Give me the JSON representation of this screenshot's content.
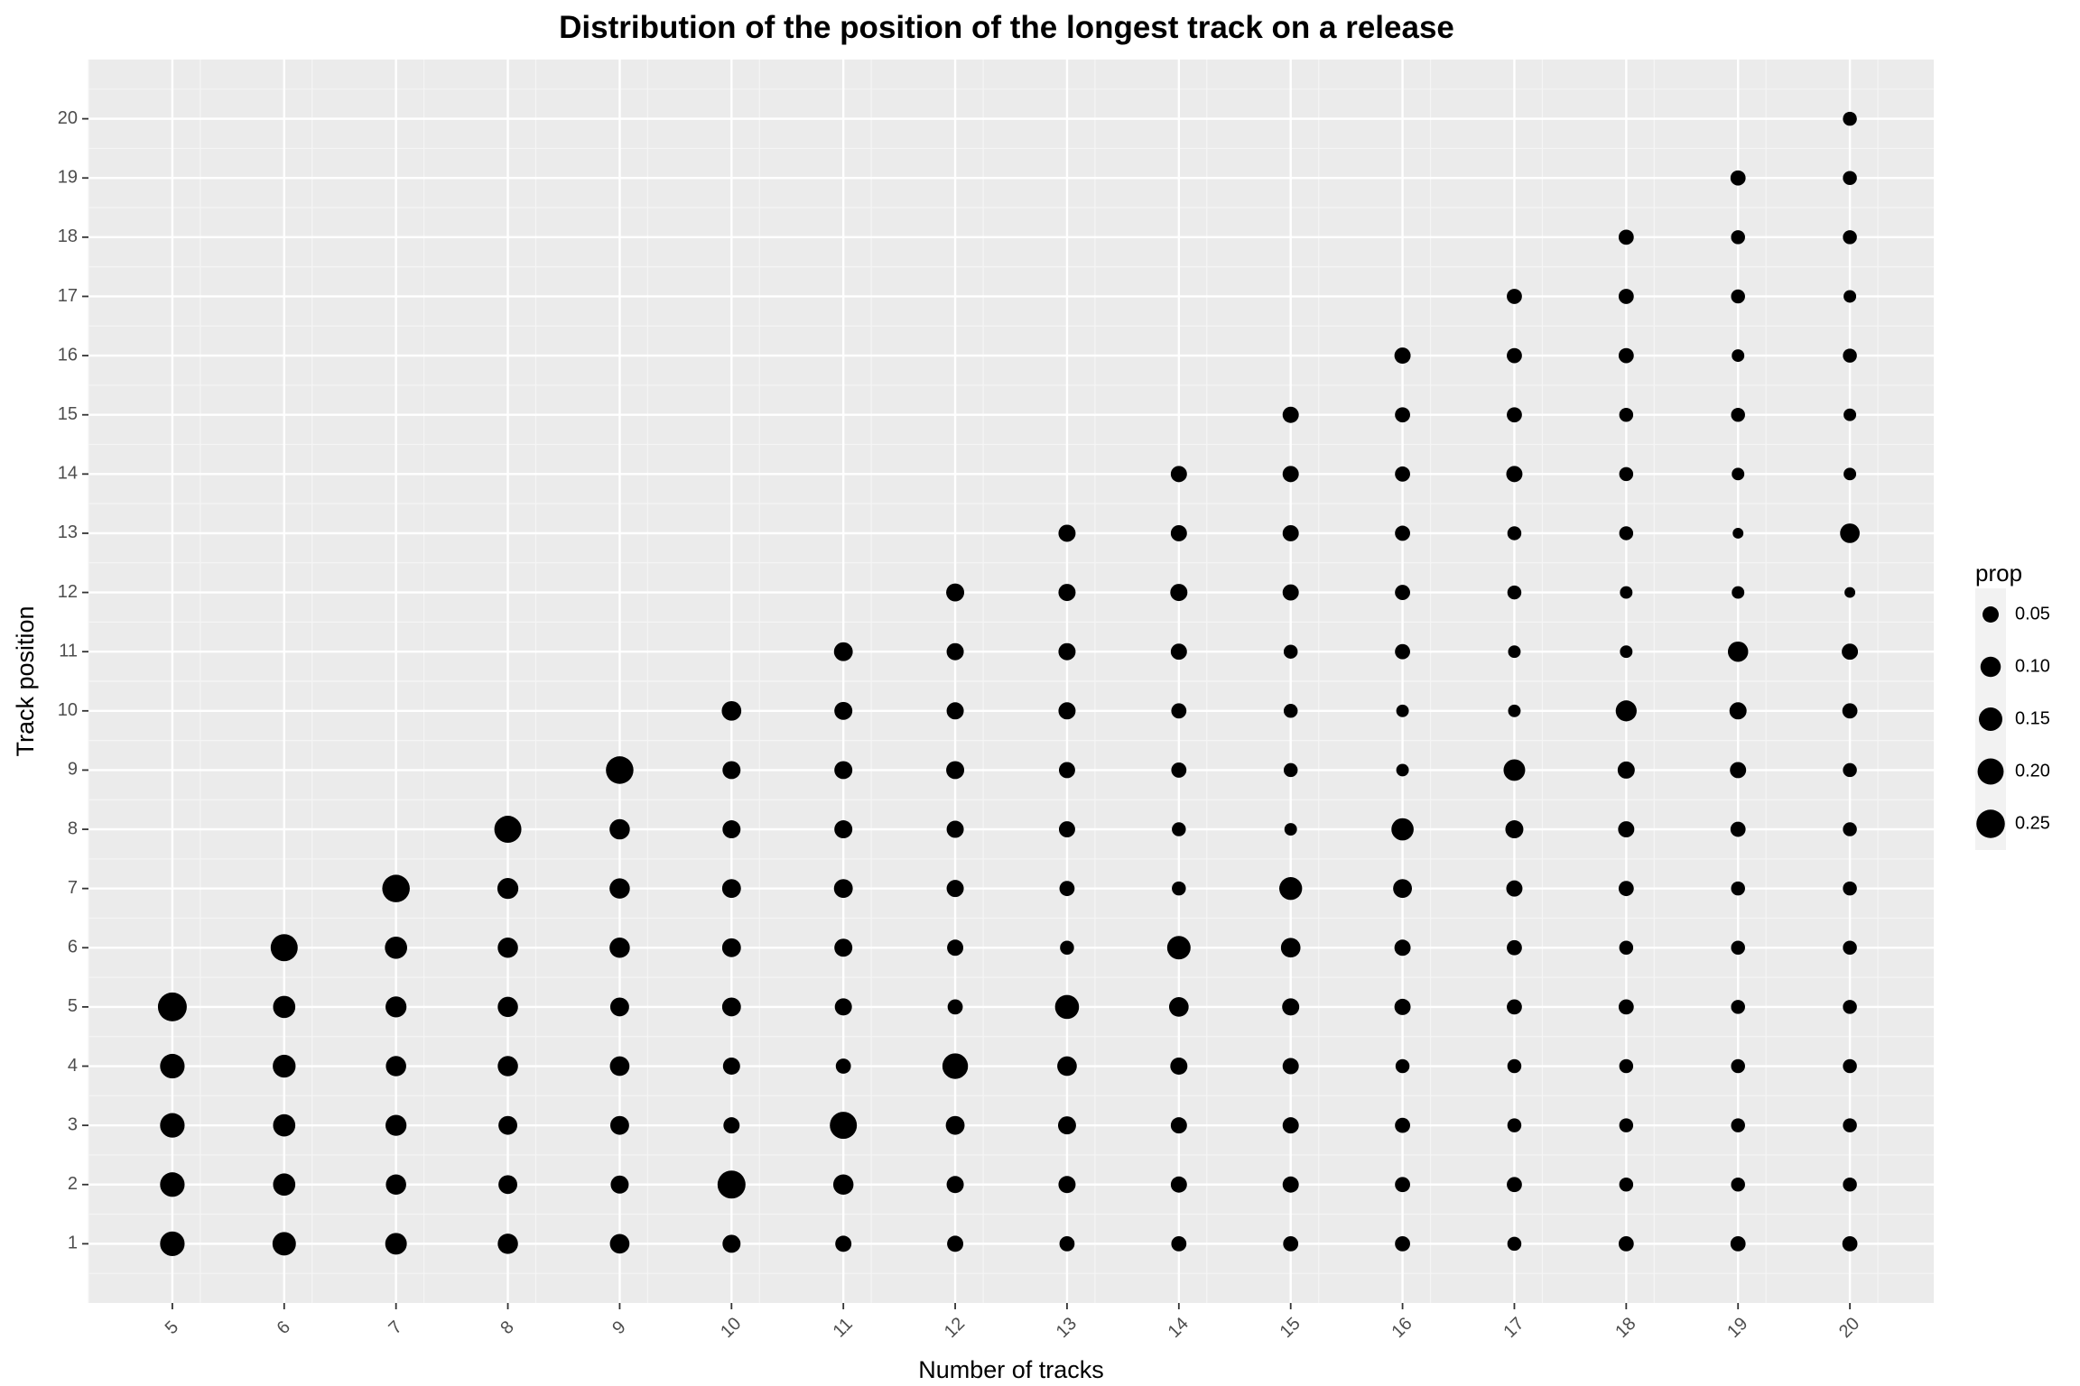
{
  "chart_data": {
    "type": "scatter",
    "title": "Distribution of the position of the longest track on a release",
    "xlabel": "Number of tracks",
    "ylabel": "Track position",
    "x_ticks": [
      5,
      6,
      7,
      8,
      9,
      10,
      11,
      12,
      13,
      14,
      15,
      16,
      17,
      18,
      19,
      20
    ],
    "y_ticks": [
      1,
      2,
      3,
      4,
      5,
      6,
      7,
      8,
      9,
      10,
      11,
      12,
      13,
      14,
      15,
      16,
      17,
      18,
      19,
      20
    ],
    "xlim": [
      4.25,
      20.75
    ],
    "ylim": [
      0,
      21
    ],
    "size_variable": "prop",
    "background": "#ebebeb",
    "grid": true,
    "point_color": "#000000",
    "legend": {
      "title": "prop",
      "position": "right",
      "entries": [
        {
          "label": "0.05",
          "value": 0.05
        },
        {
          "label": "0.10",
          "value": 0.1
        },
        {
          "label": "0.15",
          "value": 0.15
        },
        {
          "label": "0.20",
          "value": 0.2
        },
        {
          "label": "0.25",
          "value": 0.25
        }
      ]
    },
    "columns": [
      {
        "x": 5,
        "props": [
          0.17,
          0.17,
          0.17,
          0.17,
          0.26
        ]
      },
      {
        "x": 6,
        "props": [
          0.15,
          0.13,
          0.13,
          0.14,
          0.13,
          0.22
        ]
      },
      {
        "x": 7,
        "props": [
          0.12,
          0.1,
          0.11,
          0.1,
          0.11,
          0.13,
          0.23
        ]
      },
      {
        "x": 8,
        "props": [
          0.1,
          0.08,
          0.08,
          0.1,
          0.1,
          0.1,
          0.11,
          0.22
        ]
      },
      {
        "x": 9,
        "props": [
          0.09,
          0.07,
          0.08,
          0.09,
          0.08,
          0.1,
          0.1,
          0.1,
          0.23
        ]
      },
      {
        "x": 10,
        "props": [
          0.07,
          0.24,
          0.05,
          0.06,
          0.08,
          0.08,
          0.08,
          0.07,
          0.07,
          0.09
        ]
      },
      {
        "x": 11,
        "props": [
          0.05,
          0.1,
          0.22,
          0.04,
          0.06,
          0.07,
          0.08,
          0.07,
          0.07,
          0.07,
          0.08
        ]
      },
      {
        "x": 12,
        "props": [
          0.05,
          0.06,
          0.08,
          0.19,
          0.04,
          0.05,
          0.06,
          0.06,
          0.07,
          0.06,
          0.06,
          0.07
        ]
      },
      {
        "x": 13,
        "props": [
          0.04,
          0.06,
          0.07,
          0.09,
          0.16,
          0.03,
          0.04,
          0.05,
          0.05,
          0.06,
          0.06,
          0.06,
          0.06
        ]
      },
      {
        "x": 14,
        "props": [
          0.04,
          0.05,
          0.05,
          0.06,
          0.09,
          0.15,
          0.03,
          0.03,
          0.04,
          0.04,
          0.05,
          0.06,
          0.05,
          0.05
        ]
      },
      {
        "x": 15,
        "props": [
          0.04,
          0.05,
          0.05,
          0.05,
          0.06,
          0.09,
          0.14,
          0.02,
          0.03,
          0.03,
          0.03,
          0.05,
          0.05,
          0.05,
          0.05
        ]
      },
      {
        "x": 16,
        "props": [
          0.04,
          0.04,
          0.04,
          0.03,
          0.05,
          0.05,
          0.08,
          0.13,
          0.02,
          0.02,
          0.04,
          0.04,
          0.04,
          0.04,
          0.04,
          0.05
        ]
      },
      {
        "x": 17,
        "props": [
          0.03,
          0.04,
          0.03,
          0.03,
          0.04,
          0.04,
          0.05,
          0.07,
          0.12,
          0.02,
          0.02,
          0.03,
          0.03,
          0.05,
          0.04,
          0.04,
          0.04
        ]
      },
      {
        "x": 18,
        "props": [
          0.04,
          0.03,
          0.03,
          0.03,
          0.04,
          0.03,
          0.04,
          0.05,
          0.06,
          0.11,
          0.02,
          0.02,
          0.03,
          0.03,
          0.03,
          0.04,
          0.04,
          0.04
        ]
      },
      {
        "x": 19,
        "props": [
          0.04,
          0.03,
          0.03,
          0.03,
          0.03,
          0.03,
          0.03,
          0.04,
          0.05,
          0.06,
          0.1,
          0.02,
          0.01,
          0.02,
          0.03,
          0.02,
          0.03,
          0.03,
          0.04
        ]
      },
      {
        "x": 20,
        "props": [
          0.04,
          0.03,
          0.03,
          0.03,
          0.03,
          0.03,
          0.03,
          0.03,
          0.03,
          0.04,
          0.05,
          0.01,
          0.09,
          0.02,
          0.02,
          0.03,
          0.02,
          0.03,
          0.03,
          0.03
        ]
      }
    ]
  }
}
